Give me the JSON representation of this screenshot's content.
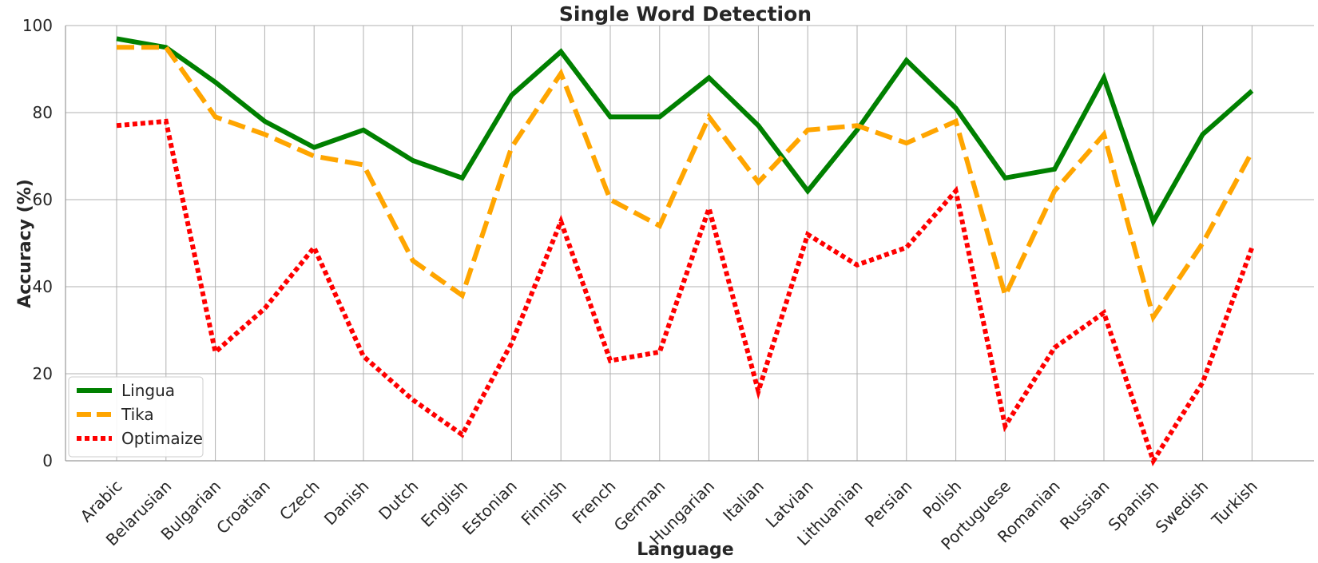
{
  "chart_data": {
    "type": "line",
    "title": "Single Word Detection",
    "xlabel": "Language",
    "ylabel": "Accuracy (%)",
    "ylim": [
      0,
      100
    ],
    "yticks": [
      0,
      20,
      40,
      60,
      80,
      100
    ],
    "grid": true,
    "legend_position": "bottom-left",
    "categories": [
      "Arabic",
      "Belarusian",
      "Bulgarian",
      "Croatian",
      "Czech",
      "Danish",
      "Dutch",
      "English",
      "Estonian",
      "Finnish",
      "French",
      "German",
      "Hungarian",
      "Italian",
      "Latvian",
      "Lithuanian",
      "Persian",
      "Polish",
      "Portuguese",
      "Romanian",
      "Russian",
      "Spanish",
      "Swedish",
      "Turkish"
    ],
    "series": [
      {
        "name": "Lingua",
        "color": "#008000",
        "style": "solid",
        "values": [
          97,
          95,
          87,
          78,
          72,
          76,
          69,
          65,
          84,
          94,
          79,
          79,
          88,
          77,
          62,
          76,
          92,
          81,
          65,
          67,
          88,
          55,
          75,
          85
        ]
      },
      {
        "name": "Tika",
        "color": "#FFA500",
        "style": "dashed",
        "values": [
          95,
          95,
          79,
          75,
          70,
          68,
          46,
          38,
          72,
          89,
          60,
          54,
          79,
          64,
          76,
          77,
          73,
          78,
          38,
          62,
          75,
          33,
          50,
          71
        ]
      },
      {
        "name": "Optimaize",
        "color": "#FF0000",
        "style": "dotted",
        "values": [
          77,
          78,
          25,
          35,
          49,
          24,
          14,
          6,
          27,
          55,
          23,
          25,
          58,
          16,
          52,
          45,
          49,
          62,
          8,
          26,
          34,
          0,
          18,
          49
        ]
      }
    ]
  }
}
